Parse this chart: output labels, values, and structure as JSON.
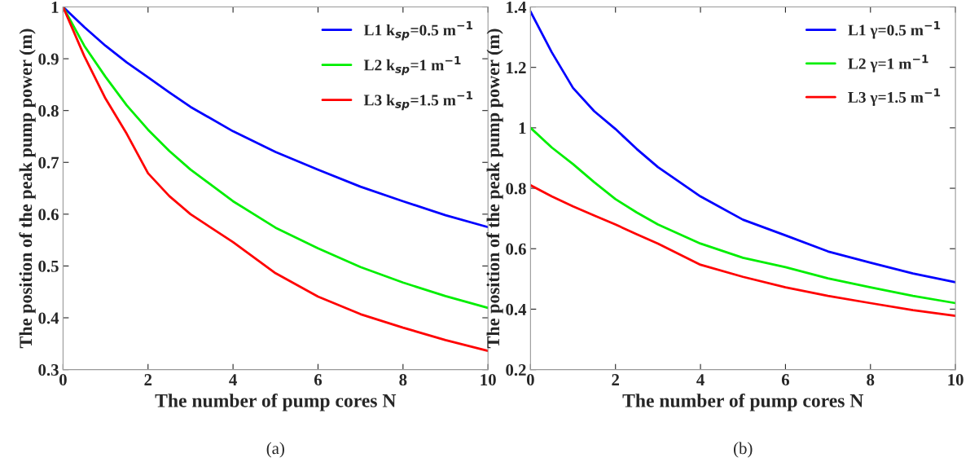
{
  "chart_data": [
    {
      "type": "line",
      "xlabel": "The number of pump cores N",
      "ylabel": "The position of the peak pump power (m)",
      "annotations": [
        "(a)"
      ],
      "xlim": [
        0,
        10
      ],
      "xticks": [
        0,
        2,
        4,
        6,
        8,
        10
      ],
      "ylim": [
        0.3,
        1
      ],
      "yticks": [
        0.3,
        0.4,
        0.5,
        0.6,
        0.7,
        0.8,
        0.9,
        1
      ],
      "grid": false,
      "legend": "top right",
      "line_style": "solid",
      "marker": "none",
      "x": [
        0,
        0.5,
        1,
        1.5,
        2,
        2.5,
        3,
        4,
        5,
        6,
        7,
        8,
        9,
        10
      ],
      "series": [
        {
          "name": "L1 k$_{sp}$=0.5 m$^{−1}$",
          "color": "#0000ff",
          "values": [
            1.0,
            0.961,
            0.925,
            0.893,
            0.864,
            0.835,
            0.807,
            0.76,
            0.72,
            0.686,
            0.653,
            0.625,
            0.598,
            0.575
          ]
        },
        {
          "name": "L2 k$_{sp}$=1 m$^{−1}$",
          "color": "#00ee00",
          "values": [
            1.0,
            0.925,
            0.865,
            0.81,
            0.763,
            0.722,
            0.686,
            0.625,
            0.574,
            0.534,
            0.498,
            0.468,
            0.442,
            0.419
          ]
        },
        {
          "name": "L3 k$_{sp}$=1.5 m$^{−1}$",
          "color": "#ff0000",
          "values": [
            1.0,
            0.905,
            0.823,
            0.755,
            0.679,
            0.635,
            0.6,
            0.546,
            0.486,
            0.441,
            0.407,
            0.381,
            0.357,
            0.336
          ]
        }
      ]
    },
    {
      "type": "line",
      "xlabel": "The number of pump cores N",
      "ylabel": "The position of the peak pump power (m)",
      "annotations": [
        "(b)"
      ],
      "xlim": [
        0,
        10
      ],
      "xticks": [
        0,
        2,
        4,
        6,
        8,
        10
      ],
      "ylim": [
        0.2,
        1.4
      ],
      "yticks": [
        0.2,
        0.4,
        0.6,
        0.8,
        1,
        1.2,
        1.4
      ],
      "grid": false,
      "legend": "top right",
      "line_style": "solid",
      "marker": "none",
      "x": [
        0,
        0.5,
        1,
        1.5,
        2,
        2.5,
        3,
        4,
        5,
        6,
        7,
        8,
        9,
        10
      ],
      "series": [
        {
          "name": "L1 γ=0.5 m$^{−1}$",
          "color": "#0000ff",
          "values": [
            1.385,
            1.25,
            1.132,
            1.055,
            0.996,
            0.93,
            0.87,
            0.773,
            0.696,
            0.644,
            0.591,
            0.554,
            0.518,
            0.489
          ]
        },
        {
          "name": "L2 γ=1 m$^{−1}$",
          "color": "#00ee00",
          "values": [
            1.0,
            0.935,
            0.88,
            0.82,
            0.764,
            0.72,
            0.68,
            0.617,
            0.57,
            0.539,
            0.502,
            0.472,
            0.444,
            0.42
          ]
        },
        {
          "name": "L3 γ=1.5 m$^{−1}$",
          "color": "#ff0000",
          "values": [
            0.81,
            0.773,
            0.74,
            0.71,
            0.68,
            0.648,
            0.617,
            0.547,
            0.507,
            0.472,
            0.444,
            0.42,
            0.397,
            0.378
          ]
        }
      ]
    }
  ]
}
